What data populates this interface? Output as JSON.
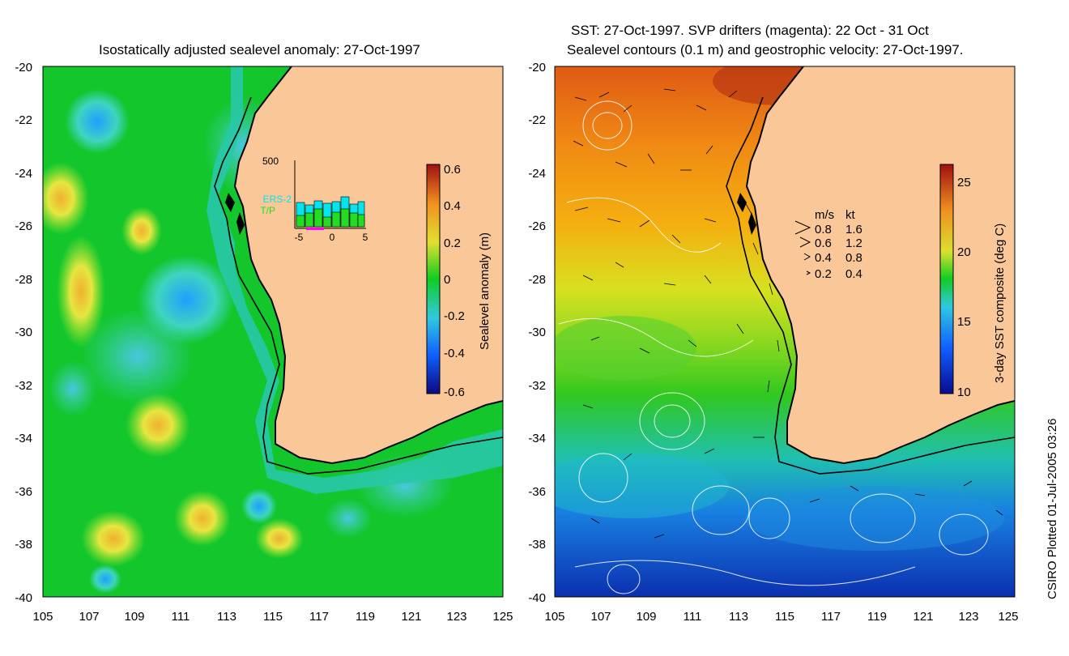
{
  "left_panel": {
    "title": "Isostatically adjusted sealevel anomaly: 27-Oct-1997",
    "y_ticks": [
      "-20",
      "-22",
      "-24",
      "-26",
      "-28",
      "-30",
      "-32",
      "-34",
      "-36",
      "-38",
      "-40"
    ],
    "x_ticks": [
      "105",
      "107",
      "109",
      "111",
      "113",
      "115",
      "117",
      "119",
      "121",
      "123",
      "125"
    ],
    "colorbar": {
      "label": "Sealevel anomaly (m)",
      "ticks": [
        "0.6",
        "0.4",
        "0.2",
        "0",
        "-0.2",
        "-0.4",
        "-0.6"
      ]
    },
    "inset": {
      "y_max_label": "500",
      "x_ticks": [
        "-5",
        "0",
        "5"
      ],
      "legend_ers": "ERS-2",
      "legend_tp": "T/P",
      "ers_color": "#00e5ee",
      "tp_color": "#22dd22"
    }
  },
  "right_panel": {
    "title_line1": "SST: 27-Oct-1997. SVP drifters (magenta): 22 Oct - 31 Oct",
    "title_line2": "Sealevel contours (0.1 m) and geostrophic velocity: 27-Oct-1997.",
    "y_ticks": [
      "-20",
      "-22",
      "-24",
      "-26",
      "-28",
      "-30",
      "-32",
      "-34",
      "-36",
      "-38",
      "-40"
    ],
    "x_ticks": [
      "105",
      "107",
      "109",
      "111",
      "113",
      "115",
      "117",
      "119",
      "121",
      "123",
      "125"
    ],
    "colorbar": {
      "label": "3-day SST composite (deg C)",
      "ticks": [
        "25",
        "20",
        "15",
        "10"
      ]
    },
    "velocity_key": {
      "header_ms": "m/s",
      "header_kt": "kt",
      "rows": [
        {
          "ms": "0.8",
          "kt": "1.6"
        },
        {
          "ms": "0.6",
          "kt": "1.2"
        },
        {
          "ms": "0.4",
          "kt": "0.8"
        },
        {
          "ms": "0.2",
          "kt": "0.4"
        }
      ]
    }
  },
  "credit": "CSIRO Plotted 01-Jul-2005 03:26",
  "colors": {
    "land": "#fac898",
    "ocean_anomaly": "#11cc22",
    "coast": "#000000"
  }
}
